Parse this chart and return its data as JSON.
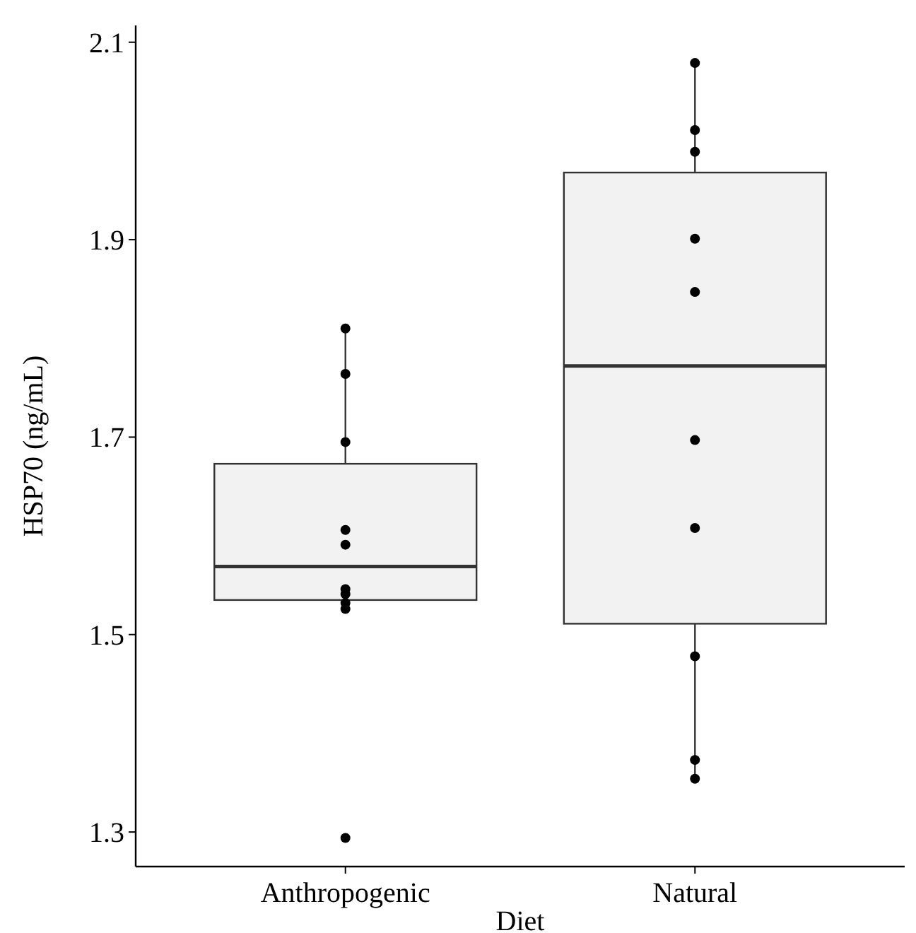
{
  "chart_data": {
    "type": "box",
    "xlabel": "Diet",
    "ylabel": "HSP70 (ng/mL)",
    "categories": [
      "Anthropogenic",
      "Natural"
    ],
    "color": "#f2f2f2",
    "boxes": [
      {
        "low": 1.526,
        "q1": 1.535,
        "median": 1.569,
        "q3": 1.673,
        "high": 1.81
      },
      {
        "low": 1.354,
        "q1": 1.511,
        "median": 1.772,
        "q3": 1.968,
        "high": 2.079
      }
    ],
    "series": [
      {
        "type": "scatter",
        "color": "#000000",
        "x": [
          "Anthropogenic",
          "Anthropogenic",
          "Anthropogenic",
          "Anthropogenic",
          "Anthropogenic",
          "Anthropogenic",
          "Anthropogenic",
          "Anthropogenic",
          "Anthropogenic",
          "Anthropogenic",
          "Natural",
          "Natural",
          "Natural",
          "Natural",
          "Natural",
          "Natural",
          "Natural",
          "Natural",
          "Natural",
          "Natural"
        ],
        "values": [
          1.81,
          1.764,
          1.695,
          1.606,
          1.591,
          1.546,
          1.541,
          1.532,
          1.526,
          1.294,
          2.079,
          2.011,
          1.989,
          1.901,
          1.847,
          1.697,
          1.608,
          1.478,
          1.373,
          1.354
        ]
      }
    ],
    "ylim": [
      1.265,
      2.117
    ],
    "yticks": [
      1.3,
      1.5,
      1.7,
      1.9,
      2.1
    ],
    "grid": false
  }
}
